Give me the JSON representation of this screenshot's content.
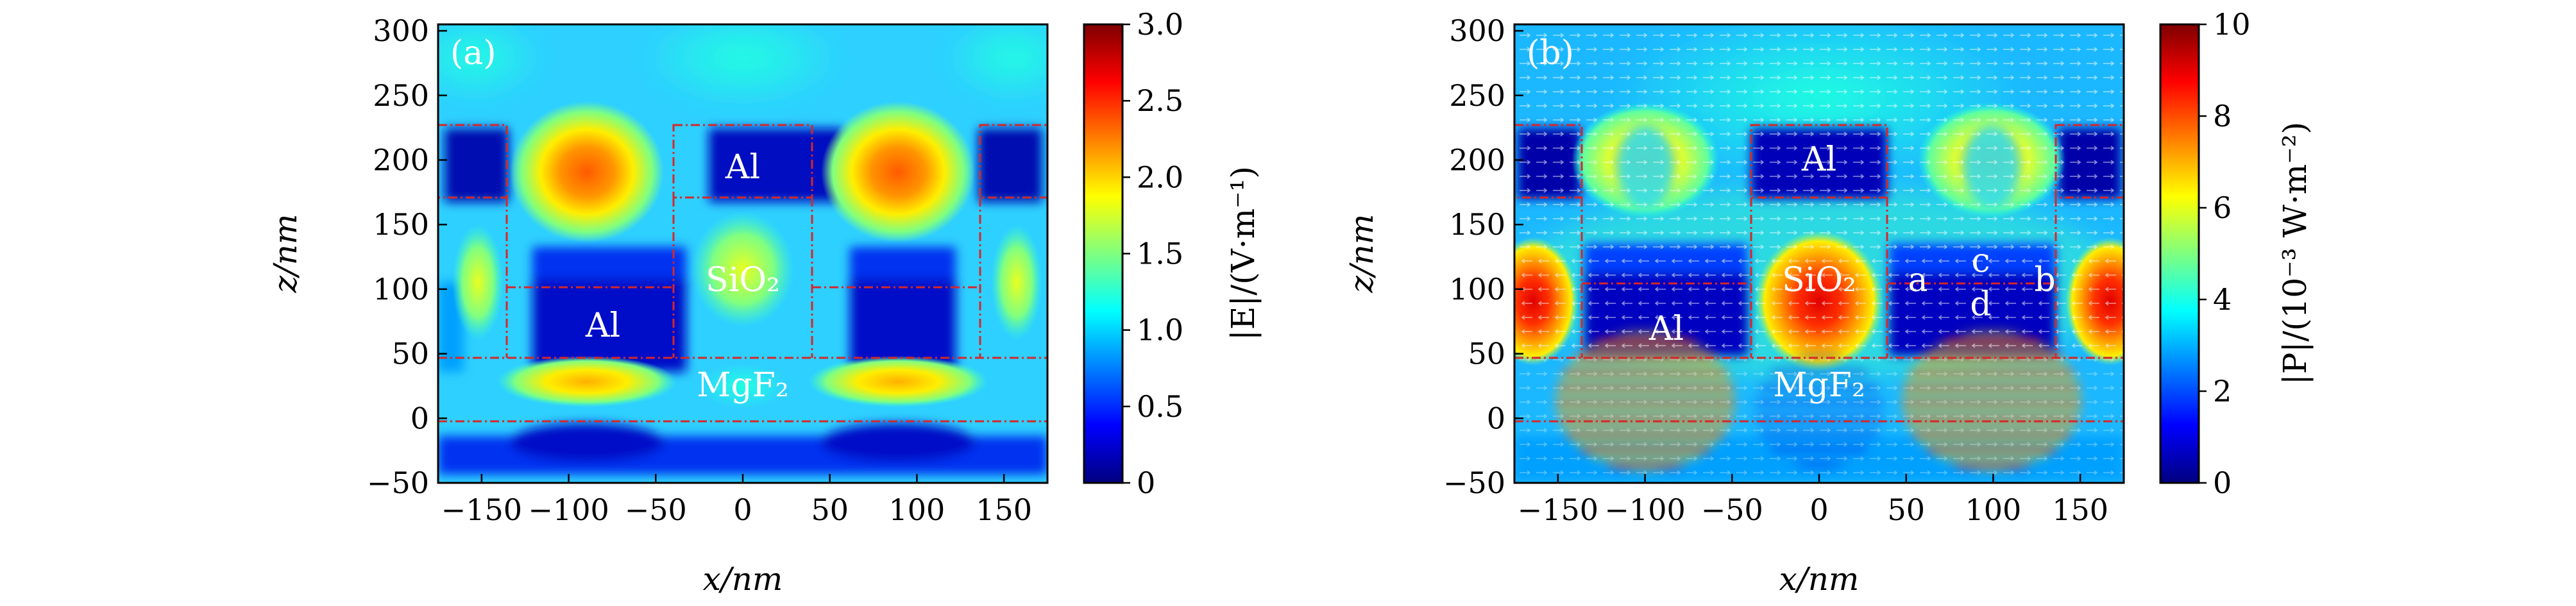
{
  "colormap_stops": [
    "#00007f",
    "#0000ff",
    "#007fff",
    "#00ffff",
    "#7fff7f",
    "#ffff00",
    "#ff7f00",
    "#ff0000",
    "#7f0000"
  ],
  "boundary_color": "#d62728",
  "chart_data": [
    {
      "type": "heatmap",
      "panel_label": "(a)",
      "xlabel": "x/nm",
      "ylabel": "z/nm",
      "xlim": [
        -175,
        175
      ],
      "ylim": [
        -50,
        305
      ],
      "xticks": [
        -150,
        -100,
        -50,
        0,
        50,
        100,
        150
      ],
      "xtick_labels": [
        "−150",
        "−100",
        "−50",
        "0",
        "50",
        "100",
        "150"
      ],
      "yticks": [
        -50,
        0,
        50,
        100,
        150,
        200,
        250,
        300
      ],
      "ytick_labels": [
        "−50",
        "0",
        "50",
        "100",
        "150",
        "200",
        "250",
        "300"
      ],
      "colorbar": {
        "label": "|E|/(V·m⁻¹)",
        "range": [
          0,
          3.0
        ],
        "ticks": [
          0,
          0.5,
          1.0,
          1.5,
          2.0,
          2.5,
          3.0
        ],
        "tick_labels": [
          "0",
          "0.5",
          "1.0",
          "1.5",
          "2.0",
          "2.5",
          "3.0"
        ]
      },
      "regions": [
        {
          "label": "Al",
          "x": 0,
          "z": 198
        },
        {
          "label": "SiO₂",
          "x": 0,
          "z": 105
        },
        {
          "label": "Al",
          "x": -110,
          "z": 75
        },
        {
          "label": "MgF₂",
          "x": 0,
          "z": 25
        }
      ],
      "field_peaks": [
        {
          "x": -90,
          "z": 190,
          "value": 2.4
        },
        {
          "x": 90,
          "z": 190,
          "value": 2.4
        },
        {
          "x": -90,
          "z": 25,
          "value": 1.9
        },
        {
          "x": 90,
          "z": 25,
          "value": 1.9
        },
        {
          "x": 0,
          "z": 120,
          "value": 1.5
        }
      ]
    },
    {
      "type": "heatmap",
      "panel_label": "(b)",
      "xlabel": "x/nm",
      "ylabel": "z/nm",
      "xlim": [
        -175,
        175
      ],
      "ylim": [
        -50,
        305
      ],
      "xticks": [
        -150,
        -100,
        -50,
        0,
        50,
        100,
        150
      ],
      "xtick_labels": [
        "−150",
        "−100",
        "−50",
        "0",
        "50",
        "100",
        "150"
      ],
      "yticks": [
        -50,
        0,
        50,
        100,
        150,
        200,
        250,
        300
      ],
      "ytick_labels": [
        "−50",
        "0",
        "50",
        "100",
        "150",
        "200",
        "250",
        "300"
      ],
      "colorbar": {
        "label": "|P|/(10⁻³ W·m⁻²)",
        "range": [
          0,
          10
        ],
        "ticks": [
          0,
          2,
          4,
          6,
          8,
          10
        ],
        "tick_labels": [
          "0",
          "2",
          "4",
          "6",
          "8",
          "10"
        ]
      },
      "regions": [
        {
          "label": "Al",
          "x": 0,
          "z": 198
        },
        {
          "label": "SiO₂",
          "x": 0,
          "z": 105
        },
        {
          "label": "Al",
          "x": -120,
          "z": 72
        },
        {
          "label": "MgF₂",
          "x": 0,
          "z": 25
        }
      ],
      "point_labels": [
        {
          "label": "a",
          "x": 62,
          "z": 103
        },
        {
          "label": "b",
          "x": 167,
          "z": 103
        },
        {
          "label": "c",
          "x": 118,
          "z": 118
        },
        {
          "label": "d",
          "x": 115,
          "z": 86
        }
      ],
      "field_peaks": [
        {
          "x": -165,
          "z": 100,
          "value": 9.5
        },
        {
          "x": 0,
          "z": 100,
          "value": 9.5
        },
        {
          "x": 165,
          "z": 100,
          "value": 9.5
        },
        {
          "x": -90,
          "z": 190,
          "value": 6.0
        },
        {
          "x": 90,
          "z": 190,
          "value": 6.0
        }
      ]
    }
  ]
}
